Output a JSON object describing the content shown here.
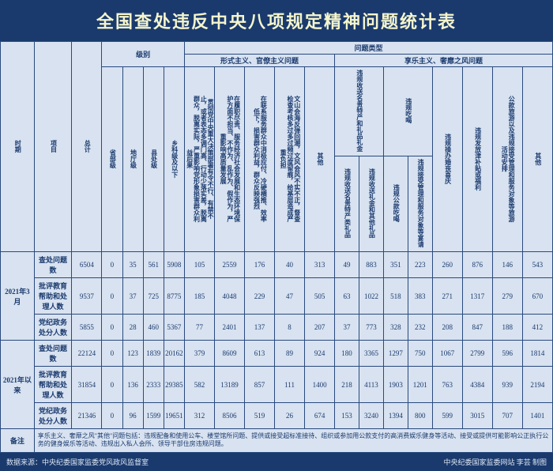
{
  "title": "全国查处违反中央八项规定精神问题统计表",
  "headers": {
    "period": "时期",
    "item": "项目",
    "total": "总计",
    "level": "级别",
    "levels": [
      "省部级",
      "地厅级",
      "县处级",
      "乡科级及以下"
    ],
    "category": "问题类型",
    "cat1": "形式主义、官僚主义问题",
    "cat2": "享乐主义、奢靡之风问题",
    "c1": [
      "贯彻党中央重大决策部署有令不行、有禁不止，或者表态多调门高、行动少落实差，脱离群众，脱离实际，严重影响党形象损害群众利益后果",
      "在履职尽责、服务经济社会发展和生态环境保护方面不担当、不作为、乱作为、假作为，严重影响高质量发展",
      "在联系服务群众中消极应付、冷硬横推、效率低下，损害群众利益，群众反映强烈",
      "文山会海反弹回潮，文风会风不实不正，督查检查考核多过多过频过度留痕，给基层造成严重负担",
      "其他"
    ],
    "c2": [
      "违规收送名贵特产和礼品礼金",
      "违规吃喝",
      "违规操办婚丧喜庆",
      "违规发放津补贴或福利",
      "公款旅游以及违规接受管理和服务对象等旅游活动安排",
      "其他"
    ],
    "c2sub1": [
      "违规收送名贵特产类礼品",
      "违规收送礼金和其他礼品"
    ],
    "c2sub2": [
      "违规公款吃喝",
      "违规接受管理和服务对象等宴请"
    ]
  },
  "periods": [
    {
      "label": "2021年3月",
      "rows": [
        {
          "name": "查处问题数",
          "v": [
            "6504",
            "0",
            "35",
            "561",
            "5908",
            "105",
            "2559",
            "176",
            "40",
            "313",
            "49",
            "883",
            "351",
            "223",
            "260",
            "876",
            "146",
            "543"
          ]
        },
        {
          "name": "批评教育帮助和处理人数",
          "v": [
            "9537",
            "0",
            "37",
            "725",
            "8775",
            "185",
            "4048",
            "229",
            "47",
            "505",
            "63",
            "1022",
            "518",
            "383",
            "271",
            "1317",
            "279",
            "670"
          ]
        },
        {
          "name": "党纪政务处分人数",
          "v": [
            "5855",
            "0",
            "28",
            "460",
            "5367",
            "77",
            "2401",
            "137",
            "8",
            "207",
            "37",
            "773",
            "328",
            "232",
            "208",
            "847",
            "188",
            "412"
          ]
        }
      ]
    },
    {
      "label": "2021年以来",
      "rows": [
        {
          "name": "查处问题数",
          "v": [
            "22124",
            "0",
            "123",
            "1839",
            "20162",
            "379",
            "8609",
            "613",
            "89",
            "924",
            "180",
            "3365",
            "1297",
            "750",
            "1067",
            "2799",
            "596",
            "1814"
          ]
        },
        {
          "name": "批评教育帮助和处理人数",
          "v": [
            "31854",
            "0",
            "136",
            "2333",
            "29385",
            "582",
            "13189",
            "857",
            "111",
            "1400",
            "218",
            "4113",
            "1903",
            "1201",
            "763",
            "4384",
            "939",
            "2194"
          ]
        },
        {
          "name": "党纪政务处分人数",
          "v": [
            "21346",
            "0",
            "96",
            "1599",
            "19651",
            "312",
            "8506",
            "519",
            "26",
            "674",
            "153",
            "3240",
            "1394",
            "800",
            "599",
            "3015",
            "707",
            "1401"
          ]
        }
      ]
    }
  ],
  "note_label": "备注",
  "note": "享乐主义、奢靡之风\"其他\"问题包括：违规配备和使用公车、楼堂馆所问题、提供或接受超标准接待、组织或参加用公款支付的高消费娱乐健身等活动、接受或提供可能影响公正执行公务的健身娱乐等活动、违规出入私人会所、领导干部住房违规问题。",
  "footer_left": "数据来源：中央纪委国家监委党风政风监督室",
  "footer_right": "中央纪委国家监委网站 李芸 制图"
}
